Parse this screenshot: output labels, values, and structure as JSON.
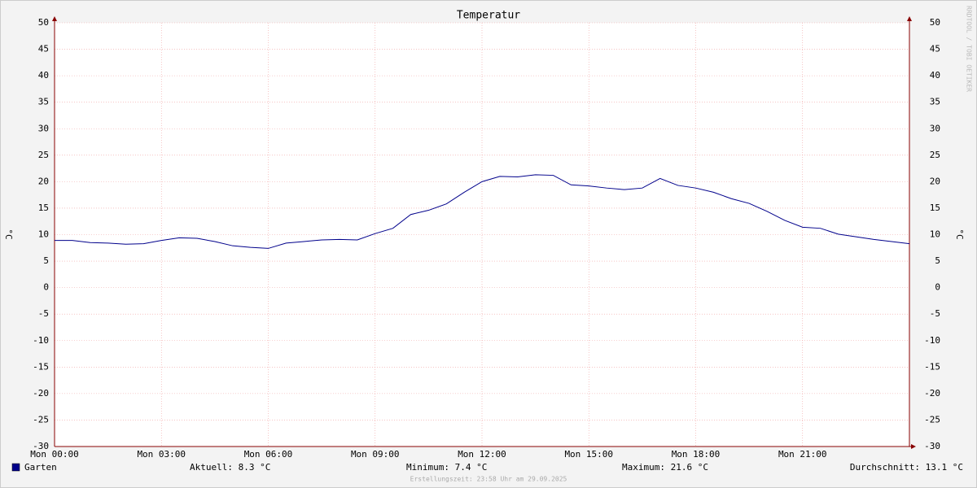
{
  "chart_data": {
    "type": "line",
    "title": "Temperatur",
    "y_label": "°C",
    "watermark": "RRDTOOL / TOBI OETIKER",
    "x": [
      0,
      0.5,
      1,
      1.5,
      2,
      2.5,
      3,
      3.5,
      4,
      4.5,
      5,
      5.5,
      6,
      6.5,
      7,
      7.5,
      8,
      8.5,
      9,
      9.5,
      10,
      10.5,
      11,
      11.5,
      12,
      12.5,
      13,
      13.5,
      14,
      14.5,
      15,
      15.5,
      16,
      16.5,
      17,
      17.5,
      18,
      18.5,
      19,
      19.5,
      20,
      20.5,
      21,
      21.5,
      22,
      22.5,
      23,
      23.5,
      24
    ],
    "series": [
      {
        "name": "Garten",
        "color": "#00008b",
        "values": [
          8.9,
          8.9,
          8.5,
          8.4,
          8.2,
          8.3,
          8.9,
          9.4,
          9.3,
          8.7,
          7.9,
          7.6,
          7.4,
          8.4,
          8.7,
          9.0,
          9.1,
          9.0,
          10.2,
          11.2,
          13.8,
          14.6,
          15.8,
          18.0,
          20.0,
          21.0,
          20.9,
          21.3,
          21.2,
          19.4,
          19.2,
          18.8,
          18.5,
          18.8,
          20.6,
          19.3,
          18.8,
          18.0,
          16.8,
          15.9,
          14.4,
          12.7,
          11.4,
          11.2,
          10.1,
          9.6,
          9.1,
          8.7,
          8.3
        ]
      }
    ],
    "xlim": [
      0,
      24
    ],
    "xticks": [
      {
        "value": 0,
        "label": "Mon 00:00"
      },
      {
        "value": 3,
        "label": "Mon 03:00"
      },
      {
        "value": 6,
        "label": "Mon 06:00"
      },
      {
        "value": 9,
        "label": "Mon 09:00"
      },
      {
        "value": 12,
        "label": "Mon 12:00"
      },
      {
        "value": 15,
        "label": "Mon 15:00"
      },
      {
        "value": 18,
        "label": "Mon 18:00"
      },
      {
        "value": 21,
        "label": "Mon 21:00"
      }
    ],
    "ylim": [
      -30,
      50
    ],
    "yticks": [
      -30,
      -25,
      -20,
      -15,
      -10,
      -5,
      0,
      5,
      10,
      15,
      20,
      25,
      30,
      35,
      40,
      45,
      50
    ],
    "grid": true,
    "stats": [
      "Aktuell: 8.3 °C",
      "Minimum: 7.4 °C",
      "Maximum: 21.6 °C",
      "Durchschnitt: 13.1 °C"
    ],
    "footer": "Erstellungszeit: 23:58 Uhr am 29.09.2025"
  }
}
